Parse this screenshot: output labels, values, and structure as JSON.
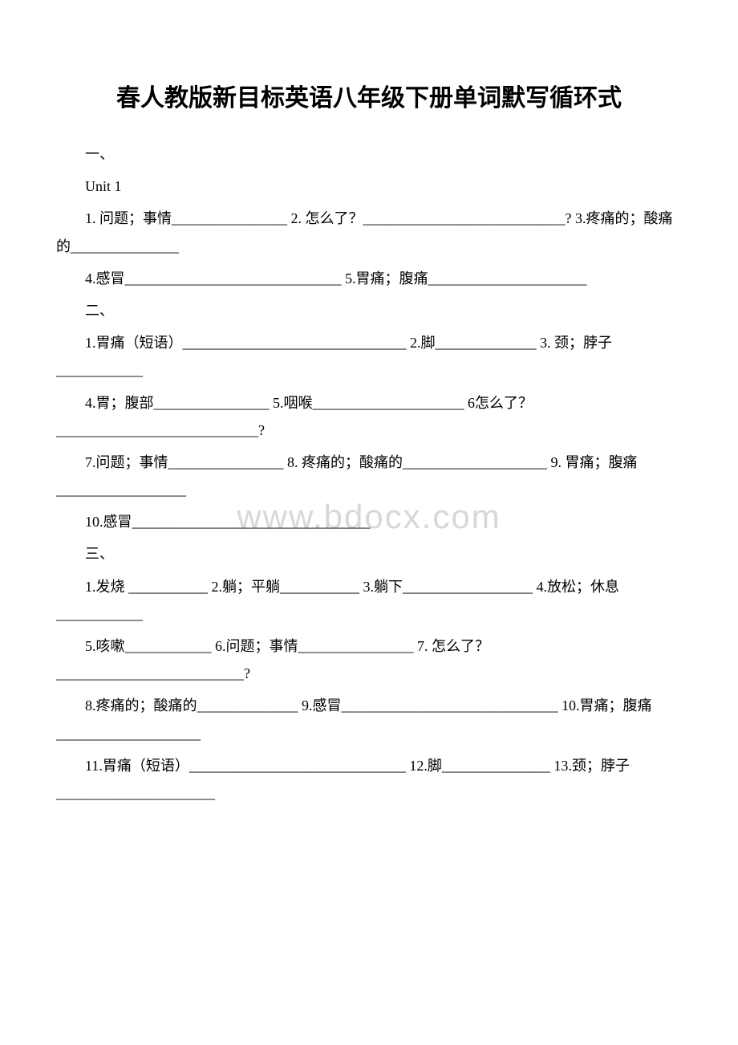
{
  "title": "春人教版新目标英语八年级下册单词默写循环式",
  "watermark": "www.bdocx.com",
  "sections": {
    "s1": {
      "header": "一、",
      "unit": "Unit 1",
      "line1": "1. 问题；事情________________ 2. 怎么了？____________________________? 3.疼痛的；酸痛的_______________",
      "line2": "4.感冒______________________________ 5.胃痛；腹痛______________________"
    },
    "s2": {
      "header": "二、",
      "line1": "1.胃痛（短语）_______________________________ 2.脚______________ 3. 颈；脖子____________",
      "line2": "4.胃；腹部________________ 5.咽喉_____________________ 6怎么了？____________________________?",
      "line3": "7.问题；事情________________ 8. 疼痛的；酸痛的____________________ 9. 胃痛；腹痛__________________",
      "line4": "10.感冒_________________________________"
    },
    "s3": {
      "header": "三、",
      "line1": "1.发烧 ___________ 2.躺；平躺___________ 3.躺下__________________ 4.放松；休息____________",
      "line2": "5.咳嗽____________ 6.问题；事情________________ 7. 怎么了？ __________________________?",
      "line3": "8.疼痛的；酸痛的______________ 9.感冒______________________________ 10.胃痛；腹痛____________________",
      "line4": "11.胃痛（短语）______________________________ 12.脚_______________ 13.颈；脖子______________________"
    }
  }
}
